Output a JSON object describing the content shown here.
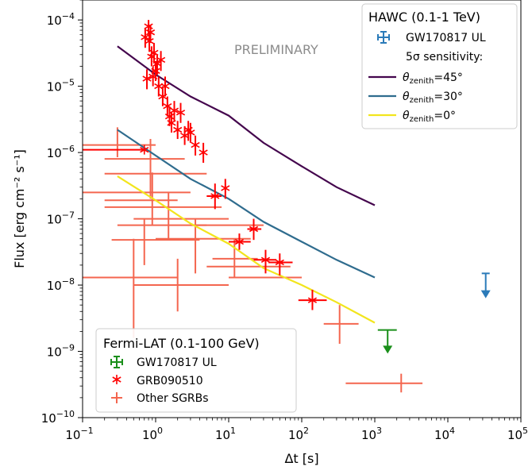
{
  "chart_data": {
    "type": "scatter",
    "title": "",
    "xlabel": "Δt [s]",
    "ylabel": "Flux [erg cm⁻² s⁻¹]",
    "xscale": "log",
    "yscale": "log",
    "xlim": [
      0.1,
      100000
    ],
    "ylim": [
      1e-10,
      0.0002
    ],
    "x_ticks": [
      {
        "value": 0.1,
        "base": "10",
        "exp": "−1"
      },
      {
        "value": 1,
        "base": "10",
        "exp": "0"
      },
      {
        "value": 10,
        "base": "10",
        "exp": "1"
      },
      {
        "value": 100,
        "base": "10",
        "exp": "2"
      },
      {
        "value": 1000,
        "base": "10",
        "exp": "3"
      },
      {
        "value": 10000,
        "base": "10",
        "exp": "4"
      },
      {
        "value": 100000,
        "base": "10",
        "exp": "5"
      }
    ],
    "y_ticks": [
      {
        "value": 1e-10,
        "base": "10",
        "exp": "−10"
      },
      {
        "value": 1e-09,
        "base": "10",
        "exp": "−9"
      },
      {
        "value": 1e-08,
        "base": "10",
        "exp": "−8"
      },
      {
        "value": 1e-07,
        "base": "10",
        "exp": "−7"
      },
      {
        "value": 1e-06,
        "base": "10",
        "exp": "−6"
      },
      {
        "value": 1e-05,
        "base": "10",
        "exp": "−5"
      },
      {
        "value": 0.0001,
        "base": "10",
        "exp": "−4"
      }
    ],
    "grid": false,
    "annotation": "PRELIMINARY",
    "legends": {
      "hawc": {
        "title": "HAWC (0.1-1 TeV)",
        "entries": [
          "GW170817 UL",
          "5σ sensitivity:",
          "θzenith=45°",
          "θzenith=30°",
          "θzenith=0°"
        ],
        "placement": "top-right"
      },
      "fermi": {
        "title": "Fermi-LAT (0.1-100 GeV)",
        "entries": [
          "GW170817 UL",
          "GRB090510",
          "Other SGRBs"
        ],
        "placement": "bottom-left"
      }
    },
    "colors": {
      "hawc_ul": "#2b7bb9",
      "fermi_ul": "#1a8f1a",
      "grb090510": "#ff0000",
      "other_sgrbs": "#f4664f",
      "zenith45": "#44064d",
      "zenith30": "#2f6c8e",
      "zenith0": "#f2e51d"
    },
    "series": [
      {
        "name": "θzenith=45°",
        "kind": "line",
        "x": [
          0.3,
          1,
          3,
          10,
          30,
          100,
          300,
          1000
        ],
        "y": [
          4e-05,
          1.5e-05,
          7e-06,
          3.6e-06,
          1.4e-06,
          6.2e-07,
          3e-07,
          1.6e-07
        ]
      },
      {
        "name": "θzenith=30°",
        "kind": "line",
        "x": [
          0.3,
          1,
          3,
          10,
          30,
          100,
          300,
          1000
        ],
        "y": [
          2.2e-06,
          9e-07,
          4e-07,
          2e-07,
          9e-08,
          4.5e-08,
          2.4e-08,
          1.3e-08
        ]
      },
      {
        "name": "θzenith=0°",
        "kind": "line",
        "x": [
          0.3,
          1,
          3,
          10,
          30,
          100,
          300,
          1000
        ],
        "y": [
          4.4e-07,
          1.9e-07,
          8.5e-08,
          4.2e-08,
          1.8e-08,
          1e-08,
          5.5e-09,
          2.7e-09
        ]
      },
      {
        "name": "GRB090510",
        "kind": "points",
        "points": [
          {
            "x": 0.7,
            "y": 1.1e-06,
            "xlo": 0.1,
            "xhi": 0.7,
            "ylo": 1.1e-06,
            "yhi": 1.1e-06
          },
          {
            "x": 0.72,
            "y": 5.5e-05,
            "ylo": 3.8e-05,
            "yhi": 7.5e-05
          },
          {
            "x": 0.76,
            "y": 1.3e-05,
            "ylo": 9e-06,
            "yhi": 1.8e-05
          },
          {
            "x": 0.8,
            "y": 8e-05,
            "ylo": 6e-05,
            "yhi": 0.0001
          },
          {
            "x": 0.82,
            "y": 4.8e-05,
            "ylo": 3.3e-05,
            "yhi": 6.5e-05
          },
          {
            "x": 0.85,
            "y": 6.5e-05,
            "ylo": 4.5e-05,
            "yhi": 8.5e-05
          },
          {
            "x": 0.88,
            "y": 2.8e-05,
            "ylo": 2e-05,
            "yhi": 4e-05
          },
          {
            "x": 0.92,
            "y": 1.4e-05,
            "ylo": 1e-05,
            "yhi": 2e-05
          },
          {
            "x": 0.95,
            "y": 3.2e-05,
            "ylo": 2.2e-05,
            "yhi": 4.5e-05
          },
          {
            "x": 1.0,
            "y": 1.7e-05,
            "ylo": 1.2e-05,
            "yhi": 2.4e-05
          },
          {
            "x": 1.05,
            "y": 2.2e-05,
            "ylo": 1.5e-05,
            "yhi": 3e-05
          },
          {
            "x": 1.1,
            "y": 1e-05,
            "ylo": 7e-06,
            "yhi": 1.4e-05
          },
          {
            "x": 1.18,
            "y": 2.5e-05,
            "ylo": 1.7e-05,
            "yhi": 3.4e-05
          },
          {
            "x": 1.25,
            "y": 7e-06,
            "ylo": 5e-06,
            "yhi": 1e-05
          },
          {
            "x": 1.35,
            "y": 1e-05,
            "ylo": 7e-06,
            "yhi": 1.4e-05
          },
          {
            "x": 1.45,
            "y": 5e-06,
            "ylo": 3.5e-06,
            "yhi": 7e-06
          },
          {
            "x": 1.55,
            "y": 3.5e-06,
            "ylo": 2.5e-06,
            "yhi": 5e-06
          },
          {
            "x": 1.65,
            "y": 2.8e-06,
            "ylo": 2e-06,
            "yhi": 4e-06
          },
          {
            "x": 1.8,
            "y": 4.3e-06,
            "ylo": 3e-06,
            "yhi": 6e-06
          },
          {
            "x": 2.0,
            "y": 2.2e-06,
            "ylo": 1.6e-06,
            "yhi": 3e-06
          },
          {
            "x": 2.2,
            "y": 4e-06,
            "ylo": 2.8e-06,
            "yhi": 5.6e-06
          },
          {
            "x": 2.5,
            "y": 1.8e-06,
            "ylo": 1.3e-06,
            "yhi": 2.5e-06
          },
          {
            "x": 2.8,
            "y": 2.2e-06,
            "ylo": 1.5e-06,
            "yhi": 3e-06
          },
          {
            "x": 3.0,
            "y": 2e-06,
            "ylo": 1.4e-06,
            "yhi": 2.8e-06
          },
          {
            "x": 3.5,
            "y": 1.3e-06,
            "ylo": 9e-07,
            "yhi": 1.8e-06
          },
          {
            "x": 4.5,
            "y": 1e-06,
            "ylo": 7e-07,
            "yhi": 1.4e-06
          },
          {
            "x": 6.5,
            "y": 2.2e-07,
            "xlo": 5,
            "xhi": 8,
            "ylo": 1.4e-07,
            "yhi": 3.4e-07
          },
          {
            "x": 9,
            "y": 2.9e-07,
            "ylo": 2e-07,
            "yhi": 4e-07
          },
          {
            "x": 14,
            "y": 4.5e-08,
            "xlo": 10,
            "xhi": 20,
            "ylo": 3.4e-08,
            "yhi": 6e-08
          },
          {
            "x": 22,
            "y": 7e-08,
            "xlo": 18,
            "xhi": 28,
            "ylo": 4.8e-08,
            "yhi": 1e-07
          },
          {
            "x": 32,
            "y": 2.4e-08,
            "xlo": 22,
            "xhi": 45,
            "ylo": 1.5e-08,
            "yhi": 3.4e-08
          },
          {
            "x": 50,
            "y": 2.2e-08,
            "xlo": 35,
            "xhi": 75,
            "ylo": 1.4e-08,
            "yhi": 3e-08
          },
          {
            "x": 140,
            "y": 5.9e-09,
            "xlo": 90,
            "xhi": 220,
            "ylo": 4.2e-09,
            "yhi": 8.5e-09
          }
        ]
      },
      {
        "name": "Other SGRBs",
        "kind": "points",
        "points": [
          {
            "x": 0.3,
            "y": 1.3e-06,
            "xlo": 0.1,
            "xhi": 1.0,
            "ylo": 8.5e-07,
            "yhi": 2.4e-06
          },
          {
            "x": 0.85,
            "y": 8e-07,
            "xlo": 0.2,
            "xhi": 2.5,
            "ylo": 2e-07,
            "yhi": 1.6e-06
          },
          {
            "x": 1.0,
            "y": 4.8e-07,
            "xlo": 0.2,
            "xhi": 5,
            "ylo": 4.8e-07,
            "yhi": 4.8e-07
          },
          {
            "x": 0.9,
            "y": 2.5e-07,
            "xlo": 0.1,
            "xhi": 3,
            "ylo": 8e-08,
            "yhi": 5e-07
          },
          {
            "x": 0.6,
            "y": 1.9e-07,
            "xlo": 0.2,
            "xhi": 2,
            "ylo": 1.9e-07,
            "yhi": 1.9e-07
          },
          {
            "x": 1.5,
            "y": 1.5e-07,
            "xlo": 0.2,
            "xhi": 8,
            "ylo": 5e-08,
            "yhi": 2.5e-07
          },
          {
            "x": 2.5,
            "y": 1e-07,
            "xlo": 0.5,
            "xhi": 10,
            "ylo": 1e-07,
            "yhi": 1e-07
          },
          {
            "x": 1.2,
            "y": 8e-08,
            "xlo": 0.3,
            "xhi": 5,
            "ylo": 8e-08,
            "yhi": 8e-08
          },
          {
            "x": 10,
            "y": 8e-08,
            "xlo": 3,
            "xhi": 30,
            "ylo": 8e-08,
            "yhi": 8e-08
          },
          {
            "x": 0.7,
            "y": 4.8e-08,
            "xlo": 0.25,
            "xhi": 4,
            "ylo": 2e-08,
            "yhi": 1e-07
          },
          {
            "x": 3.5,
            "y": 5e-08,
            "xlo": 1,
            "xhi": 20,
            "ylo": 1.5e-08,
            "yhi": 1e-07
          },
          {
            "x": 0.5,
            "y": 1.3e-08,
            "xlo": 0.1,
            "xhi": 2,
            "ylo": 1.6e-09,
            "yhi": 5e-08
          },
          {
            "x": 2.0,
            "y": 1e-08,
            "xlo": 0.5,
            "xhi": 10,
            "ylo": 4e-09,
            "yhi": 2.5e-08
          },
          {
            "x": 15,
            "y": 1.9e-08,
            "xlo": 5,
            "xhi": 70,
            "ylo": 1.9e-08,
            "yhi": 1.9e-08
          },
          {
            "x": 30,
            "y": 1.3e-08,
            "xlo": 10,
            "xhi": 100,
            "ylo": 1.3e-08,
            "yhi": 1.3e-08
          },
          {
            "x": 12,
            "y": 2.5e-08,
            "xlo": 6,
            "xhi": 25,
            "ylo": 1.3e-08,
            "yhi": 5e-08
          },
          {
            "x": 330,
            "y": 2.6e-09,
            "xlo": 200,
            "xhi": 600,
            "ylo": 1.3e-09,
            "yhi": 5e-09
          },
          {
            "x": 2300,
            "y": 3.3e-10,
            "xlo": 400,
            "xhi": 4500,
            "ylo": 2.4e-10,
            "yhi": 4.6e-10
          }
        ]
      },
      {
        "name": "GW170817 UL (HAWC)",
        "kind": "upper_limit",
        "x": 33000,
        "y": 1.5e-08,
        "arrow_to": 6.5e-09
      },
      {
        "name": "GW170817 UL (Fermi-LAT)",
        "kind": "upper_limit",
        "x": 1500,
        "y": 2.1e-09,
        "xlo": 1100,
        "xhi": 2000,
        "arrow_to": 9.5e-10
      }
    ]
  }
}
